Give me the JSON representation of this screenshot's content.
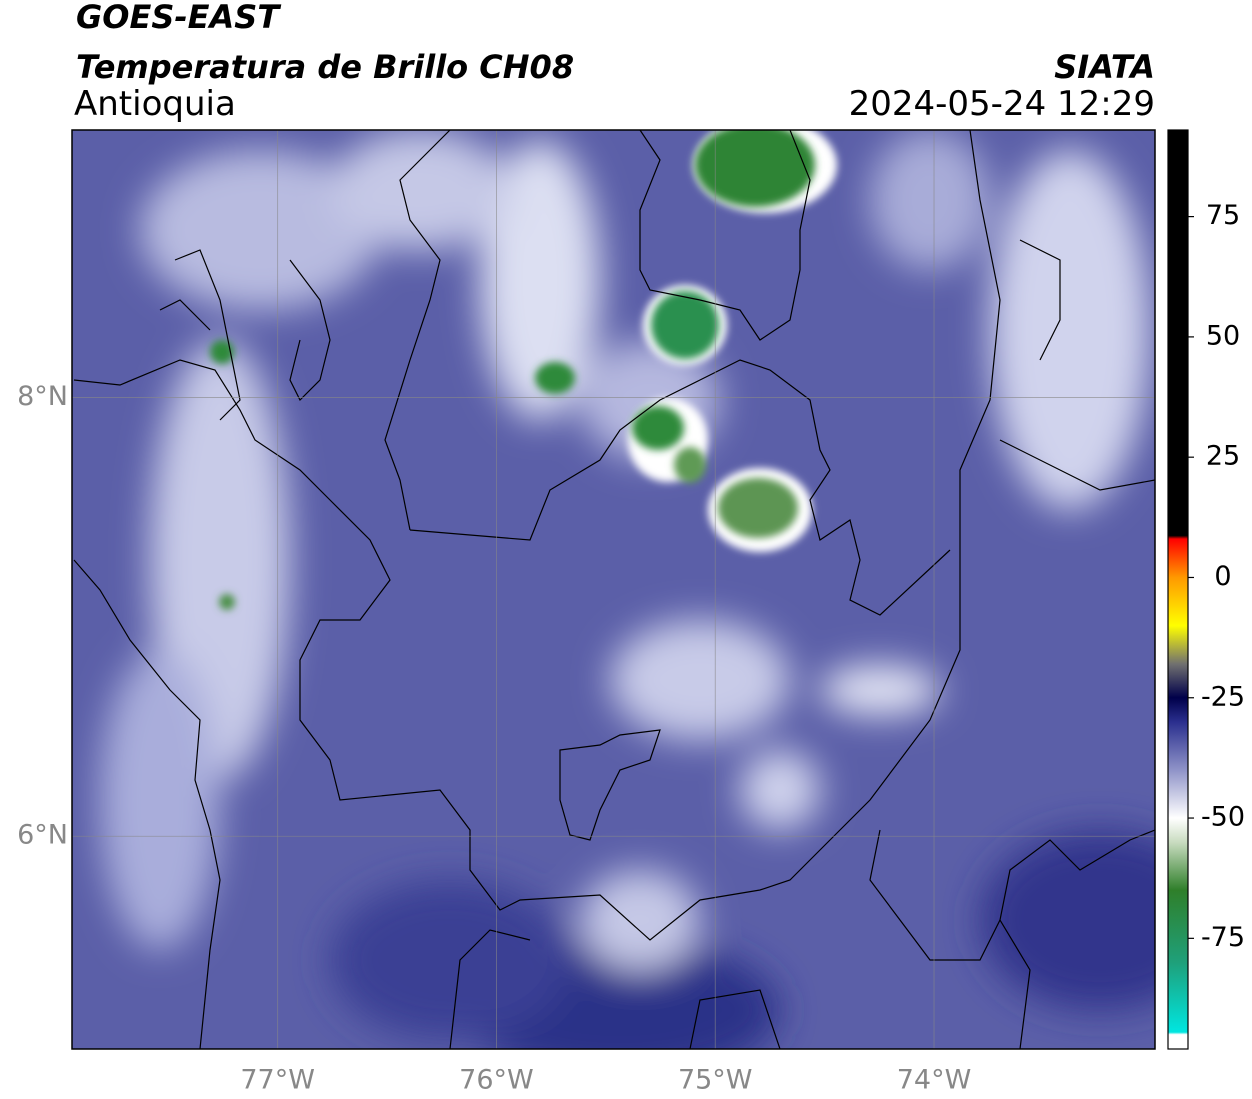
{
  "header": {
    "satellite": "GOES-EAST",
    "product": "Temperatura de Brillo CH08",
    "region": "Antioquia",
    "source": "SIATA",
    "datetime": "2024-05-24 12:29"
  },
  "map": {
    "xlim": [
      -77.94,
      -72.99
    ],
    "ylim": [
      5.03,
      9.22
    ],
    "xticks": [
      {
        "value": -77,
        "label": "77°W"
      },
      {
        "value": -76,
        "label": "76°W"
      },
      {
        "value": -75,
        "label": "75°W"
      },
      {
        "value": -74,
        "label": "74°W"
      }
    ],
    "yticks": [
      {
        "value": 8,
        "label": "8°N"
      },
      {
        "value": 6,
        "label": "6°N"
      }
    ],
    "grid": true
  },
  "colorbar": {
    "lim": [
      -98,
      93
    ],
    "ticks": [
      75,
      50,
      25,
      0,
      -25,
      -50,
      -75
    ],
    "stops": [
      {
        "value": -98,
        "color": "#ffffff"
      },
      {
        "value": -95,
        "color": "#ffffff"
      },
      {
        "value": -94.5,
        "color": "#00e6e0"
      },
      {
        "value": -80,
        "color": "#1fa07a"
      },
      {
        "value": -65,
        "color": "#2f7f2a"
      },
      {
        "value": -55,
        "color": "#c9dcc0"
      },
      {
        "value": -50,
        "color": "#ffffff"
      },
      {
        "value": -40,
        "color": "#8f93c8"
      },
      {
        "value": -30,
        "color": "#2a2f8e"
      },
      {
        "value": -25,
        "color": "#00004a"
      },
      {
        "value": -18,
        "color": "#707070"
      },
      {
        "value": -10,
        "color": "#ffff00"
      },
      {
        "value": 0,
        "color": "#ff9900"
      },
      {
        "value": 8,
        "color": "#ff0000"
      },
      {
        "value": 8.7,
        "color": "#000000"
      },
      {
        "value": 93,
        "color": "#000000"
      }
    ]
  }
}
